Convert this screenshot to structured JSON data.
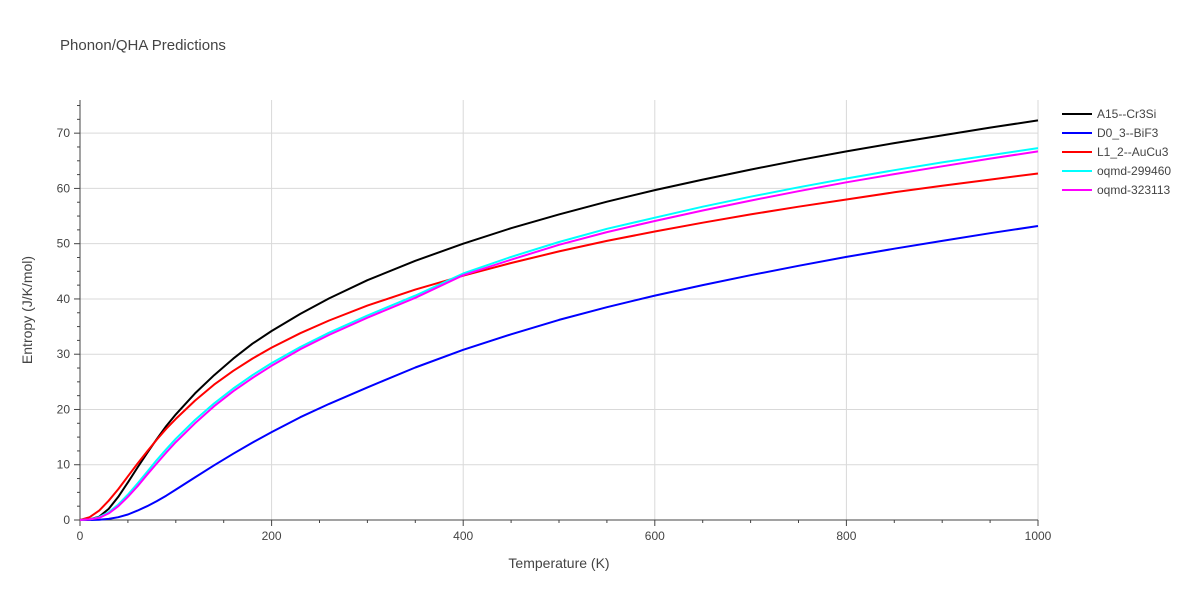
{
  "chart_data": {
    "type": "line",
    "title": "Phonon/QHA Predictions",
    "xlabel": "Temperature (K)",
    "ylabel": "Entropy (J/K/mol)",
    "xlim": [
      0,
      1000
    ],
    "ylim": [
      0,
      76
    ],
    "xticks": [
      0,
      200,
      400,
      600,
      800,
      1000
    ],
    "yticks": [
      0,
      10,
      20,
      30,
      40,
      50,
      60,
      70
    ],
    "grid": true,
    "legend_position": "top-right",
    "series": [
      {
        "name": "A15--Cr3Si",
        "color": "#000000",
        "x": [
          0,
          10,
          20,
          30,
          40,
          50,
          60,
          70,
          80,
          90,
          100,
          120,
          140,
          160,
          180,
          200,
          230,
          260,
          300,
          350,
          400,
          450,
          500,
          550,
          600,
          650,
          700,
          750,
          800,
          850,
          900,
          950,
          1000
        ],
        "y": [
          0,
          0.1,
          0.6,
          2.0,
          4.2,
          6.8,
          9.5,
          12.1,
          14.6,
          17.0,
          19.1,
          22.9,
          26.2,
          29.2,
          31.9,
          34.2,
          37.3,
          40.1,
          43.4,
          46.9,
          50.0,
          52.8,
          55.3,
          57.6,
          59.7,
          61.6,
          63.4,
          65.1,
          66.7,
          68.2,
          69.6,
          71.0,
          72.3
        ]
      },
      {
        "name": "D0_3--BiF3",
        "color": "#0000ff",
        "x": [
          0,
          10,
          20,
          30,
          40,
          50,
          60,
          70,
          80,
          90,
          100,
          120,
          140,
          160,
          180,
          200,
          230,
          260,
          300,
          350,
          400,
          450,
          500,
          550,
          600,
          650,
          700,
          750,
          800,
          850,
          900,
          950,
          1000
        ],
        "y": [
          0,
          0,
          0.05,
          0.2,
          0.5,
          1.0,
          1.7,
          2.5,
          3.4,
          4.4,
          5.5,
          7.7,
          9.9,
          12.0,
          14.0,
          15.9,
          18.6,
          21.0,
          24.0,
          27.6,
          30.8,
          33.6,
          36.2,
          38.5,
          40.6,
          42.5,
          44.3,
          46.0,
          47.6,
          49.1,
          50.5,
          51.9,
          53.2
        ]
      },
      {
        "name": "L1_2--AuCu3",
        "color": "#ff0000",
        "x": [
          0,
          10,
          20,
          30,
          40,
          50,
          60,
          70,
          80,
          90,
          100,
          120,
          140,
          160,
          180,
          200,
          230,
          260,
          300,
          350,
          400,
          450,
          500,
          550,
          600,
          650,
          700,
          750,
          800,
          850,
          900,
          950,
          1000
        ],
        "y": [
          0,
          0.5,
          1.7,
          3.5,
          5.6,
          7.9,
          10.2,
          12.4,
          14.5,
          16.5,
          18.3,
          21.6,
          24.5,
          27.0,
          29.2,
          31.2,
          33.8,
          36.1,
          38.8,
          41.7,
          44.2,
          46.5,
          48.6,
          50.5,
          52.2,
          53.8,
          55.3,
          56.7,
          58.0,
          59.3,
          60.5,
          61.6,
          62.7
        ]
      },
      {
        "name": "oqmd-299460",
        "color": "#00ffff",
        "x": [
          0,
          10,
          20,
          30,
          40,
          50,
          60,
          70,
          80,
          90,
          100,
          120,
          140,
          160,
          180,
          200,
          230,
          260,
          300,
          350,
          400,
          450,
          500,
          550,
          600,
          650,
          700,
          750,
          800,
          850,
          900,
          950,
          1000
        ],
        "y": [
          0,
          0.1,
          0.5,
          1.4,
          2.8,
          4.6,
          6.6,
          8.7,
          10.8,
          12.8,
          14.7,
          18.1,
          21.1,
          23.8,
          26.2,
          28.4,
          31.3,
          33.9,
          37.0,
          40.6,
          44.6,
          47.6,
          50.3,
          52.7,
          54.7,
          56.7,
          58.5,
          60.2,
          61.8,
          63.3,
          64.7,
          66.0,
          67.3
        ]
      },
      {
        "name": "oqmd-323113",
        "color": "#ff00ff",
        "x": [
          0,
          10,
          20,
          30,
          40,
          50,
          60,
          70,
          80,
          90,
          100,
          120,
          140,
          160,
          180,
          200,
          230,
          260,
          300,
          350,
          400,
          450,
          500,
          550,
          600,
          650,
          700,
          750,
          800,
          850,
          900,
          950,
          1000
        ],
        "y": [
          0,
          0.1,
          0.4,
          1.2,
          2.5,
          4.2,
          6.1,
          8.2,
          10.2,
          12.2,
          14.1,
          17.5,
          20.6,
          23.3,
          25.7,
          27.9,
          30.9,
          33.5,
          36.6,
          40.2,
          44.3,
          47.1,
          49.8,
          52.1,
          54.1,
          56.0,
          57.8,
          59.5,
          61.1,
          62.6,
          64.0,
          65.4,
          66.7
        ]
      }
    ]
  }
}
